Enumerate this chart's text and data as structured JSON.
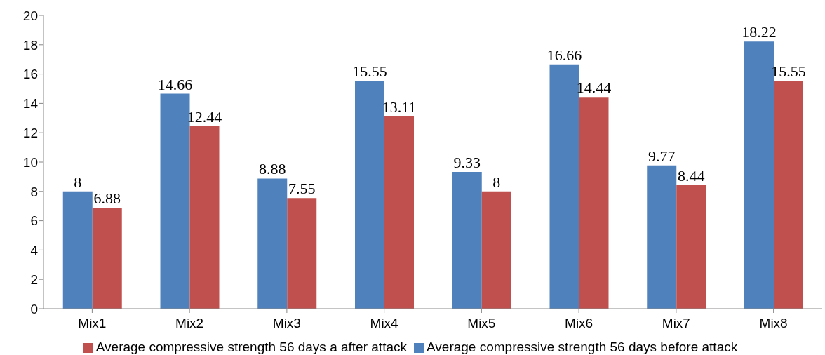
{
  "chart_data": {
    "type": "bar",
    "categories": [
      "Mix1",
      "Mix2",
      "Mix3",
      "Mix4",
      "Mix5",
      "Mix6",
      "Mix7",
      "Mix8"
    ],
    "series": [
      {
        "name": "Average compressive strength 56 days before attack",
        "color": "#4f81bd",
        "values": [
          8,
          14.66,
          8.88,
          15.55,
          9.33,
          16.66,
          9.77,
          18.22
        ]
      },
      {
        "name": "Average compressive strength 56 days a after attack",
        "color": "#c0504d",
        "values": [
          6.88,
          12.44,
          7.55,
          13.11,
          8,
          14.44,
          8.44,
          15.55
        ]
      }
    ],
    "ylim": [
      0,
      20
    ],
    "yticks": [
      0,
      2,
      4,
      6,
      8,
      10,
      12,
      14,
      16,
      18,
      20
    ],
    "grid": false,
    "legend": "bottom",
    "data_labels": true
  }
}
